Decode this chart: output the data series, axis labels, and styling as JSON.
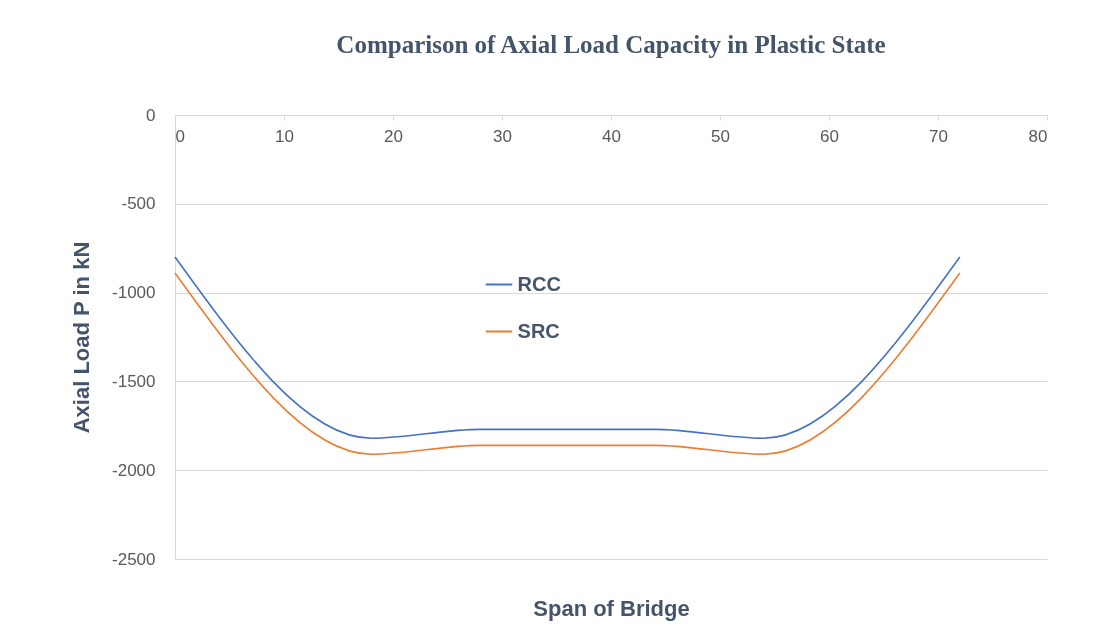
{
  "chart_data": {
    "type": "line",
    "title": "Comparison of Axial Load Capacity in Plastic State",
    "xlabel": "Span of Bridge",
    "ylabel": "Axial Load P in kN",
    "x": [
      0,
      18,
      28,
      44,
      54,
      72
    ],
    "series": [
      {
        "name": "RCC",
        "color": "#4472c4",
        "values": [
          -800,
          -1820,
          -1770,
          -1770,
          -1820,
          -800
        ]
      },
      {
        "name": "SRC",
        "color": "#ed7d31",
        "values": [
          -890,
          -1910,
          -1860,
          -1860,
          -1910,
          -890
        ]
      }
    ],
    "xlim": [
      0,
      80
    ],
    "xticks": [
      0,
      10,
      20,
      30,
      40,
      50,
      60,
      70,
      80
    ],
    "ylim": [
      -2500,
      0
    ],
    "yticks": [
      0,
      -500,
      -1000,
      -1500,
      -2000,
      -2500
    ],
    "grid": "y",
    "legend": "top",
    "marker": "none",
    "line_style": "solid"
  }
}
